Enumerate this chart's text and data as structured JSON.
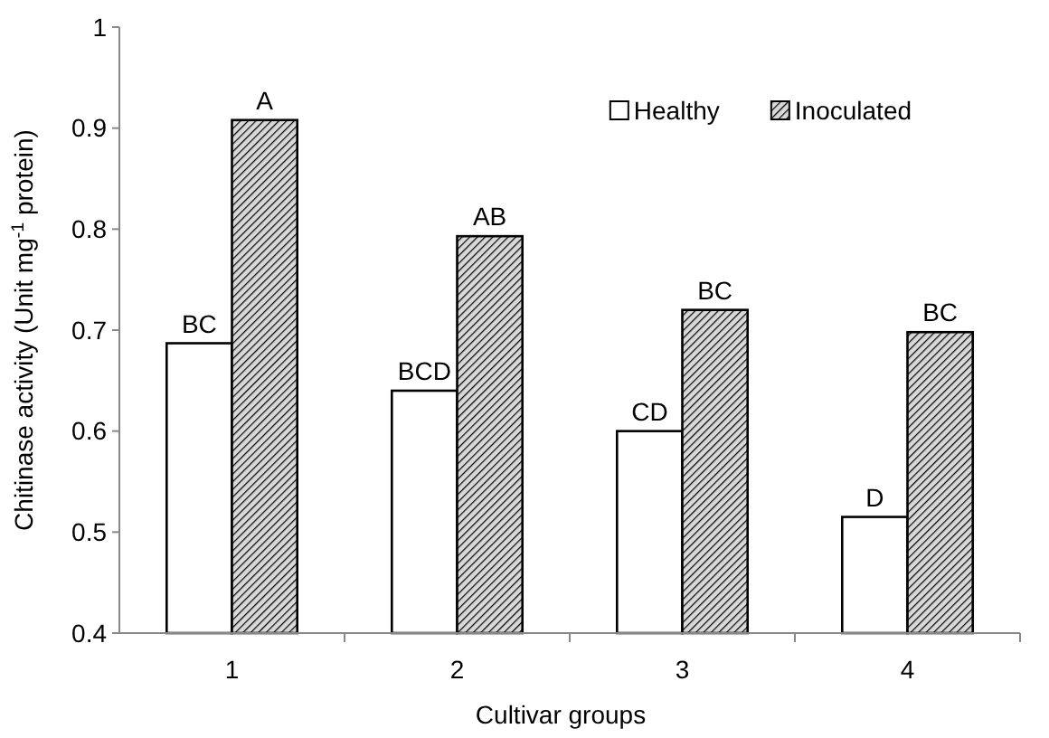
{
  "chart_data": {
    "type": "bar",
    "xlabel": "Cultivar groups",
    "ylabel": "Chitinase activity (Unit mg$^{-1}$ protein)",
    "categories": [
      "1",
      "2",
      "3",
      "4"
    ],
    "series": [
      {
        "name": "Healthy",
        "color": "#ffffff",
        "values": [
          0.687,
          0.64,
          0.6,
          0.515
        ]
      },
      {
        "name": "Inoculated",
        "color": "#000000",
        "values": [
          0.908,
          0.793,
          0.72,
          0.698
        ]
      }
    ],
    "ylim": [
      0.4,
      1
    ],
    "yticks": [
      0.4,
      0.5,
      0.6,
      0.7,
      0.8,
      0.9,
      1
    ],
    "grid": false,
    "legend": "top right",
    "annotations": [
      {
        "text": "BC",
        "x": "1",
        "y": 0.687
      },
      {
        "text": "A",
        "x": "1",
        "y": 0.908
      },
      {
        "text": "BCD",
        "x": "2",
        "y": 0.64
      },
      {
        "text": "AB",
        "x": "2",
        "y": 0.793
      },
      {
        "text": "CD",
        "x": "3",
        "y": 0.6
      },
      {
        "text": "BC",
        "x": "3",
        "y": 0.72
      },
      {
        "text": "D",
        "x": "4",
        "y": 0.515
      },
      {
        "text": "BC",
        "x": "4",
        "y": 0.698
      }
    ]
  }
}
